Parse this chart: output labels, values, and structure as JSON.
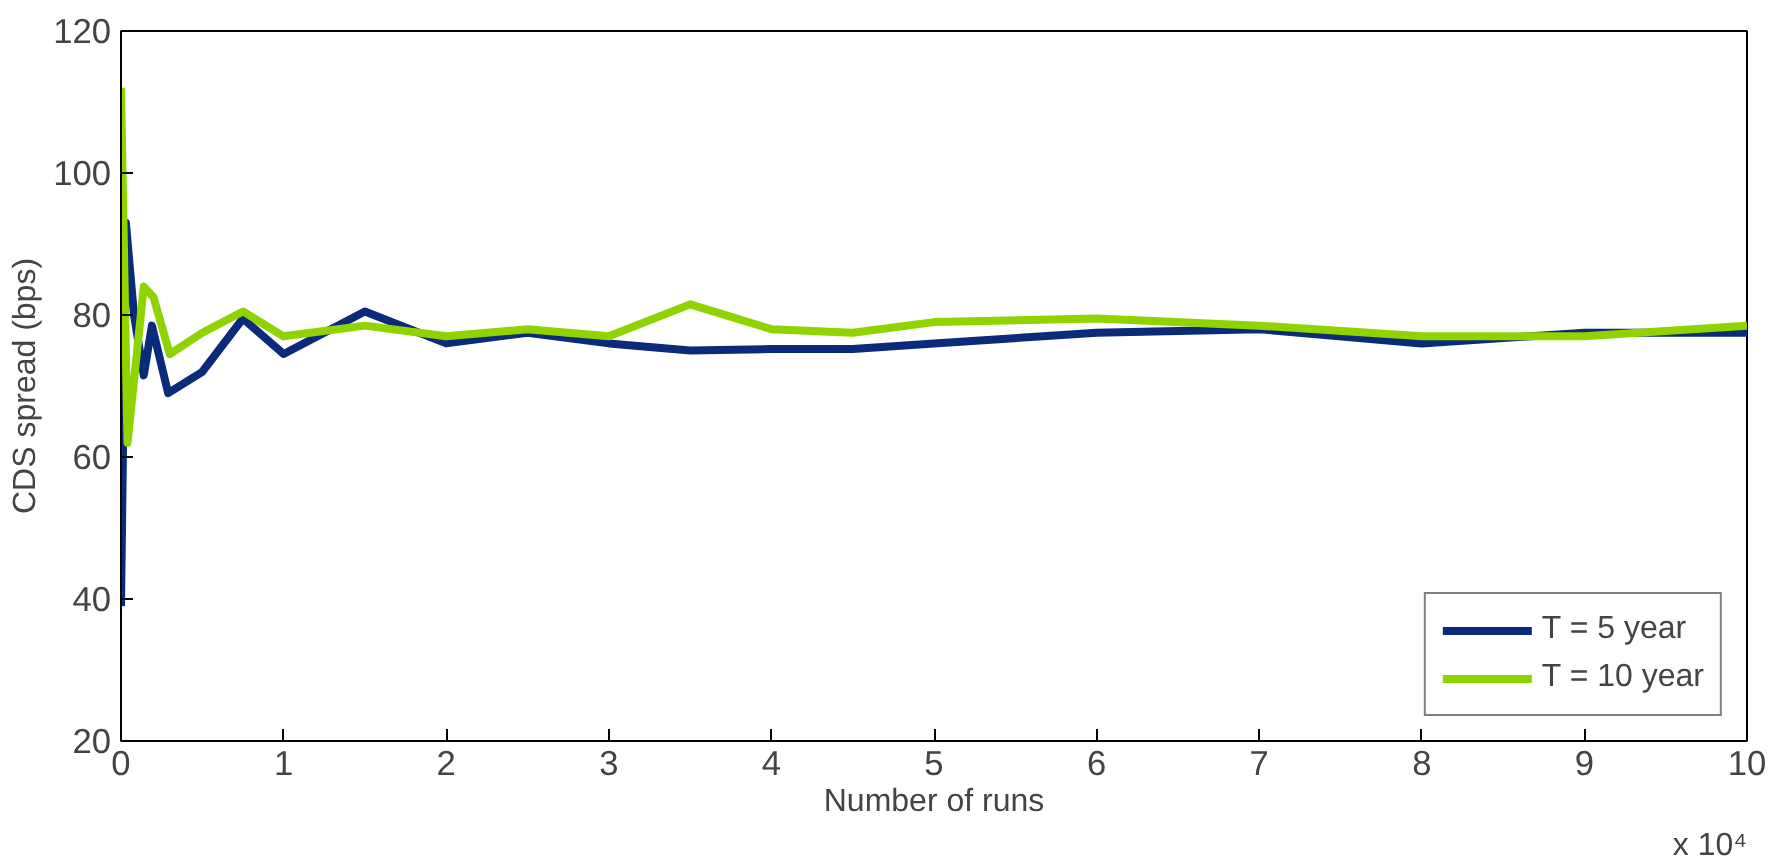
{
  "chart_data": {
    "type": "line",
    "xlabel": "Number of runs",
    "ylabel": "CDS spread (bps)",
    "xlim": [
      0,
      10
    ],
    "ylim": [
      20,
      120
    ],
    "xticks": [
      0,
      1,
      2,
      3,
      4,
      5,
      6,
      7,
      8,
      9,
      10
    ],
    "yticks": [
      20,
      40,
      60,
      80,
      100,
      120
    ],
    "grid": false,
    "legend": "bottom right",
    "line_style": "solid",
    "annotations": [
      "x 10⁴"
    ],
    "series": [
      {
        "name": "T = 5 year",
        "color": "#0a2a7a",
        "x": [
          0,
          0.03,
          0.08,
          0.14,
          0.19,
          0.29,
          0.5,
          0.75,
          1,
          1.5,
          2,
          2.5,
          3,
          3.5,
          4,
          4.5,
          5,
          6,
          7,
          8,
          9,
          10
        ],
        "values": [
          39,
          93,
          80,
          71.5,
          78.5,
          69,
          72,
          79.5,
          74.5,
          80.5,
          76,
          77.5,
          76,
          75,
          75.2,
          75.2,
          76,
          77.5,
          78,
          76,
          77.5,
          77.5
        ]
      },
      {
        "name": "T = 10 year",
        "color": "#8fd400",
        "x": [
          0,
          0.04,
          0.14,
          0.2,
          0.3,
          0.5,
          0.75,
          1,
          1.5,
          2,
          2.5,
          3,
          3.5,
          4,
          4.5,
          5,
          6,
          7,
          8,
          9,
          10
        ],
        "values": [
          112,
          62,
          84,
          82.5,
          74.5,
          77.5,
          80.5,
          77,
          78.5,
          77,
          78,
          77,
          81.5,
          78,
          77.5,
          79,
          79.5,
          78.5,
          77,
          77,
          78.5
        ]
      }
    ]
  }
}
